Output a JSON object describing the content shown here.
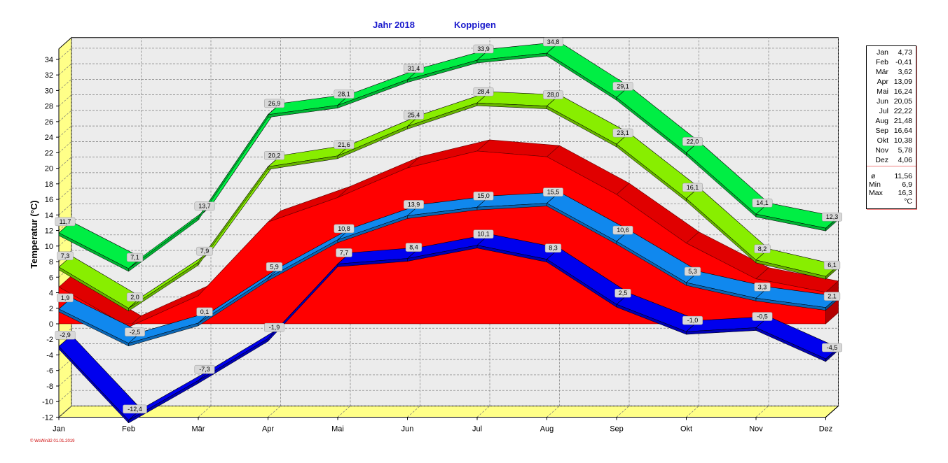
{
  "header": {
    "year": "Jahr  2018",
    "station": "Koppigen"
  },
  "legend": {
    "months": [
      {
        "m": "Jan",
        "v": "4,73"
      },
      {
        "m": "Feb",
        "v": "-0,41"
      },
      {
        "m": "Mär",
        "v": "3,62"
      },
      {
        "m": "Apr",
        "v": "13,09"
      },
      {
        "m": "Mai",
        "v": "16,24"
      },
      {
        "m": "Jun",
        "v": "20,05"
      },
      {
        "m": "Jul",
        "v": "22,22"
      },
      {
        "m": "Aug",
        "v": "21,48"
      },
      {
        "m": "Sep",
        "v": "16,64"
      },
      {
        "m": "Okt",
        "v": "10,38"
      },
      {
        "m": "Nov",
        "v": "5,78"
      },
      {
        "m": "Dez",
        "v": "4,06"
      }
    ],
    "stats": [
      {
        "m": "ø",
        "v": "11,56"
      },
      {
        "m": "Min",
        "v": "6,9"
      },
      {
        "m": "Max",
        "v": "16,3"
      },
      {
        "m": "",
        "v": "°C"
      }
    ]
  },
  "footer": "© WsWin32  01.01.2019",
  "chart_data": {
    "type": "area",
    "title": "Jahr  2018   Koppigen",
    "ylabel": "Temperatur  (°C)",
    "xlabel": "",
    "categories": [
      "Jan",
      "Feb",
      "Mär",
      "Apr",
      "Mai",
      "Jun",
      "Jul",
      "Aug",
      "Sep",
      "Okt",
      "Nov",
      "Dez"
    ],
    "ylim": [
      -12,
      35
    ],
    "yticks": [
      -12,
      -10,
      -8,
      -6,
      -4,
      -2,
      0,
      2,
      4,
      6,
      8,
      10,
      12,
      14,
      16,
      18,
      20,
      22,
      24,
      26,
      28,
      30,
      32,
      34
    ],
    "grid": true,
    "series": [
      {
        "values": [
          11.7,
          7.1,
          13.7,
          26.9,
          28.1,
          31.4,
          33.9,
          34.8,
          29.1,
          22.0,
          14.1,
          12.3
        ],
        "labels": [
          "11,7",
          "7,1",
          "13,7",
          "26,9",
          "28,1",
          "31,4",
          "33,9",
          "34,8",
          "29,1",
          "22,0",
          "14,1",
          "12,3"
        ],
        "color": "#00ee44"
      },
      {
        "values": [
          7.3,
          2.0,
          7.9,
          20.2,
          21.6,
          25.4,
          28.4,
          28.0,
          23.1,
          16.1,
          8.2,
          6.1
        ],
        "labels": [
          "7,3",
          "2,0",
          "7,9",
          "20,2",
          "21,6",
          "25,4",
          "28,4",
          "28,0",
          "23,1",
          "16,1",
          "8,2",
          "6,1"
        ],
        "color": "#88ee00"
      },
      {
        "values": [
          4.73,
          -0.41,
          3.62,
          13.09,
          16.24,
          20.05,
          22.22,
          21.48,
          16.64,
          10.38,
          5.78,
          4.06
        ],
        "color": "#ff0000"
      },
      {
        "values": [
          1.9,
          -2.5,
          0.1,
          5.9,
          10.8,
          13.9,
          15.0,
          15.5,
          10.6,
          5.3,
          3.3,
          2.1
        ],
        "labels": [
          "1,9",
          "-2,5",
          "0,1",
          "5,9",
          "10,8",
          "13,9",
          "15,0",
          "15,5",
          "10,6",
          "5,3",
          "3,3",
          "2,1"
        ],
        "color": "#1088ee"
      },
      {
        "values": [
          -2.9,
          -12.4,
          -7.3,
          -1.9,
          7.7,
          8.4,
          10.1,
          8.3,
          2.5,
          -1.0,
          -0.5,
          -4.5
        ],
        "labels": [
          "-2,9",
          "-12,4",
          "-7,3",
          "-1,9",
          "7,7",
          "8,4",
          "10,1",
          "8,3",
          "2,5",
          "-1,0",
          "-0,5",
          "-4,5"
        ],
        "color": "#0000ee"
      }
    ]
  }
}
